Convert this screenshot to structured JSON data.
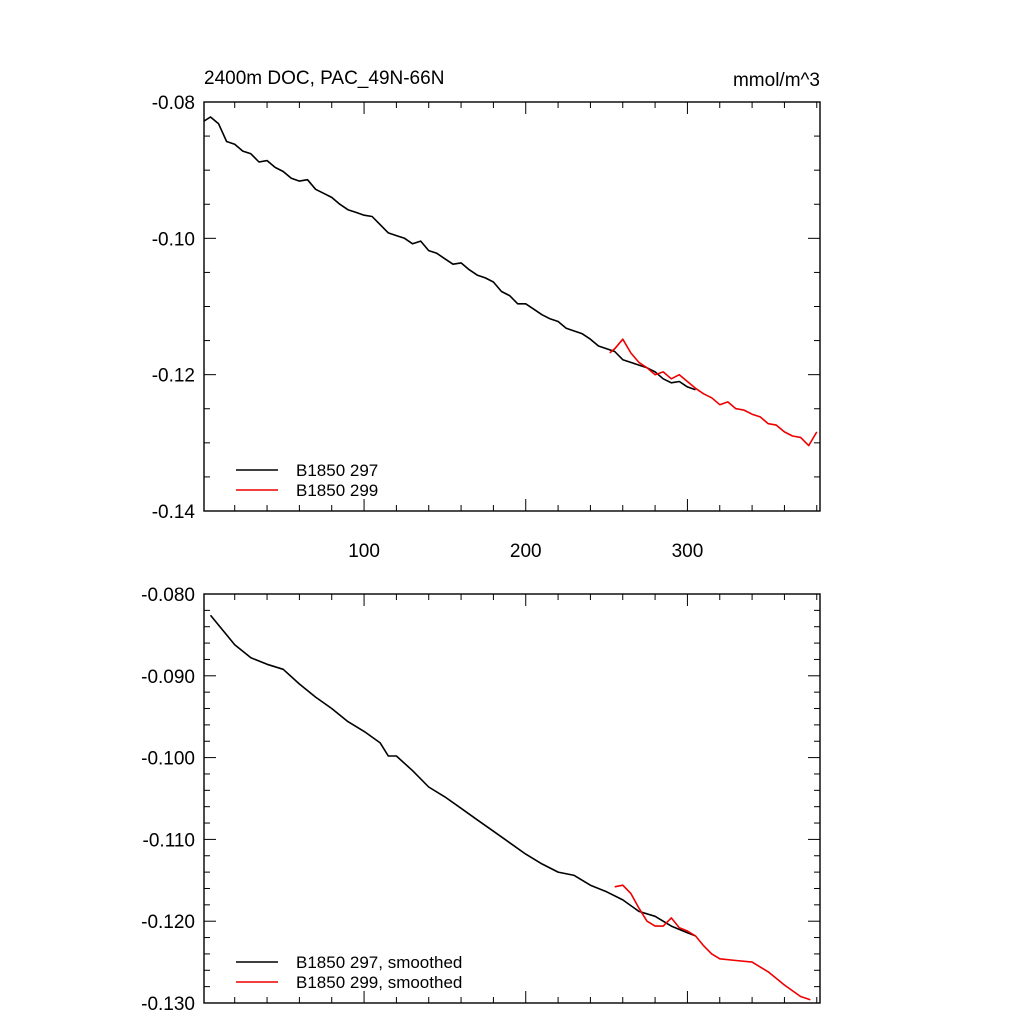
{
  "title_left": "2400m DOC, PAC_49N-66N",
  "title_right": "mmol/m^3",
  "colors": {
    "run297": "#000000",
    "run299": "#ee0000"
  },
  "chart_data": [
    {
      "type": "line",
      "xlim": [
        1,
        382
      ],
      "ylim": [
        -0.14,
        -0.08
      ],
      "x_ticks": [
        100,
        200,
        300
      ],
      "x_tick_labels": [
        "100",
        "200",
        "300"
      ],
      "y_ticks": [
        -0.08,
        -0.1,
        -0.12,
        -0.14
      ],
      "y_tick_labels": [
        "-0.08",
        "-0.10",
        "-0.12",
        "-0.14"
      ],
      "y_minor_step": 0.005,
      "x_minor_step": 20,
      "legend_position": "bottom-left",
      "grid": false,
      "series": [
        {
          "name": "B1850 297",
          "color": "#000000",
          "x": [
            1,
            5,
            10,
            15,
            20,
            25,
            30,
            35,
            40,
            45,
            50,
            55,
            60,
            65,
            70,
            75,
            80,
            85,
            90,
            95,
            100,
            105,
            110,
            115,
            120,
            125,
            130,
            135,
            140,
            145,
            150,
            155,
            160,
            165,
            170,
            175,
            180,
            185,
            190,
            195,
            200,
            205,
            210,
            215,
            220,
            225,
            230,
            235,
            240,
            245,
            250,
            255,
            260,
            265,
            270,
            275,
            280,
            285,
            290,
            295,
            300,
            305
          ],
          "y": [
            -0.0828,
            -0.0822,
            -0.0832,
            -0.0858,
            -0.0862,
            -0.0872,
            -0.0876,
            -0.0888,
            -0.0886,
            -0.0896,
            -0.0902,
            -0.0912,
            -0.0916,
            -0.0914,
            -0.0928,
            -0.0934,
            -0.094,
            -0.095,
            -0.0958,
            -0.0962,
            -0.0966,
            -0.0968,
            -0.098,
            -0.0992,
            -0.0996,
            -0.1,
            -0.1008,
            -0.1004,
            -0.1018,
            -0.1022,
            -0.103,
            -0.1038,
            -0.1036,
            -0.1046,
            -0.1054,
            -0.1058,
            -0.1064,
            -0.1078,
            -0.1084,
            -0.1096,
            -0.1096,
            -0.1104,
            -0.1112,
            -0.1118,
            -0.1122,
            -0.1132,
            -0.1136,
            -0.114,
            -0.1148,
            -0.1158,
            -0.1162,
            -0.1166,
            -0.1178,
            -0.1182,
            -0.1186,
            -0.119,
            -0.1196,
            -0.1206,
            -0.1212,
            -0.121,
            -0.1218,
            -0.1222
          ]
        },
        {
          "name": "B1850 299",
          "color": "#ee0000",
          "x": [
            252,
            255,
            260,
            265,
            270,
            275,
            280,
            285,
            290,
            295,
            300,
            305,
            310,
            315,
            320,
            325,
            330,
            335,
            340,
            345,
            350,
            355,
            360,
            365,
            370,
            375,
            380
          ],
          "y": [
            -0.1168,
            -0.1162,
            -0.1148,
            -0.1168,
            -0.1182,
            -0.119,
            -0.12,
            -0.1196,
            -0.1206,
            -0.12,
            -0.121,
            -0.122,
            -0.1228,
            -0.1234,
            -0.1244,
            -0.124,
            -0.125,
            -0.1252,
            -0.1258,
            -0.1262,
            -0.1272,
            -0.1274,
            -0.1284,
            -0.129,
            -0.1292,
            -0.1304,
            -0.1284
          ]
        }
      ]
    },
    {
      "type": "line",
      "xlim": [
        1,
        382
      ],
      "ylim": [
        -0.13,
        -0.08
      ],
      "x_ticks": [
        100,
        200,
        300
      ],
      "x_tick_labels": [
        "",
        "",
        ""
      ],
      "y_ticks": [
        -0.08,
        -0.09,
        -0.1,
        -0.11,
        -0.12,
        -0.13
      ],
      "y_tick_labels": [
        "-0.080",
        "-0.090",
        "-0.100",
        "-0.110",
        "-0.120",
        "-0.130"
      ],
      "y_minor_step": 0.002,
      "x_minor_step": 20,
      "legend_position": "bottom-left",
      "grid": false,
      "series": [
        {
          "name": "B1850 297, smoothed",
          "color": "#000000",
          "x": [
            5,
            10,
            20,
            30,
            40,
            50,
            60,
            70,
            80,
            90,
            100,
            110,
            115,
            120,
            130,
            140,
            150,
            160,
            170,
            180,
            190,
            200,
            210,
            220,
            230,
            240,
            250,
            260,
            270,
            280,
            290,
            300,
            305
          ],
          "y": [
            -0.0826,
            -0.0838,
            -0.0862,
            -0.0878,
            -0.0886,
            -0.0892,
            -0.091,
            -0.0926,
            -0.094,
            -0.0956,
            -0.0968,
            -0.0982,
            -0.0998,
            -0.0998,
            -0.1016,
            -0.1036,
            -0.1048,
            -0.1062,
            -0.1076,
            -0.109,
            -0.1104,
            -0.1118,
            -0.113,
            -0.114,
            -0.1144,
            -0.1156,
            -0.1164,
            -0.1174,
            -0.1188,
            -0.1194,
            -0.1206,
            -0.1214,
            -0.1218
          ]
        },
        {
          "name": "B1850 299, smoothed",
          "color": "#ee0000",
          "x": [
            255,
            260,
            265,
            270,
            275,
            280,
            285,
            290,
            295,
            300,
            305,
            310,
            315,
            320,
            330,
            340,
            350,
            360,
            370,
            376
          ],
          "y": [
            -0.1158,
            -0.1156,
            -0.1166,
            -0.1184,
            -0.12,
            -0.1206,
            -0.1206,
            -0.1196,
            -0.1208,
            -0.1212,
            -0.1218,
            -0.123,
            -0.124,
            -0.1246,
            -0.1248,
            -0.125,
            -0.1262,
            -0.1278,
            -0.1292,
            -0.1296
          ]
        }
      ]
    }
  ]
}
